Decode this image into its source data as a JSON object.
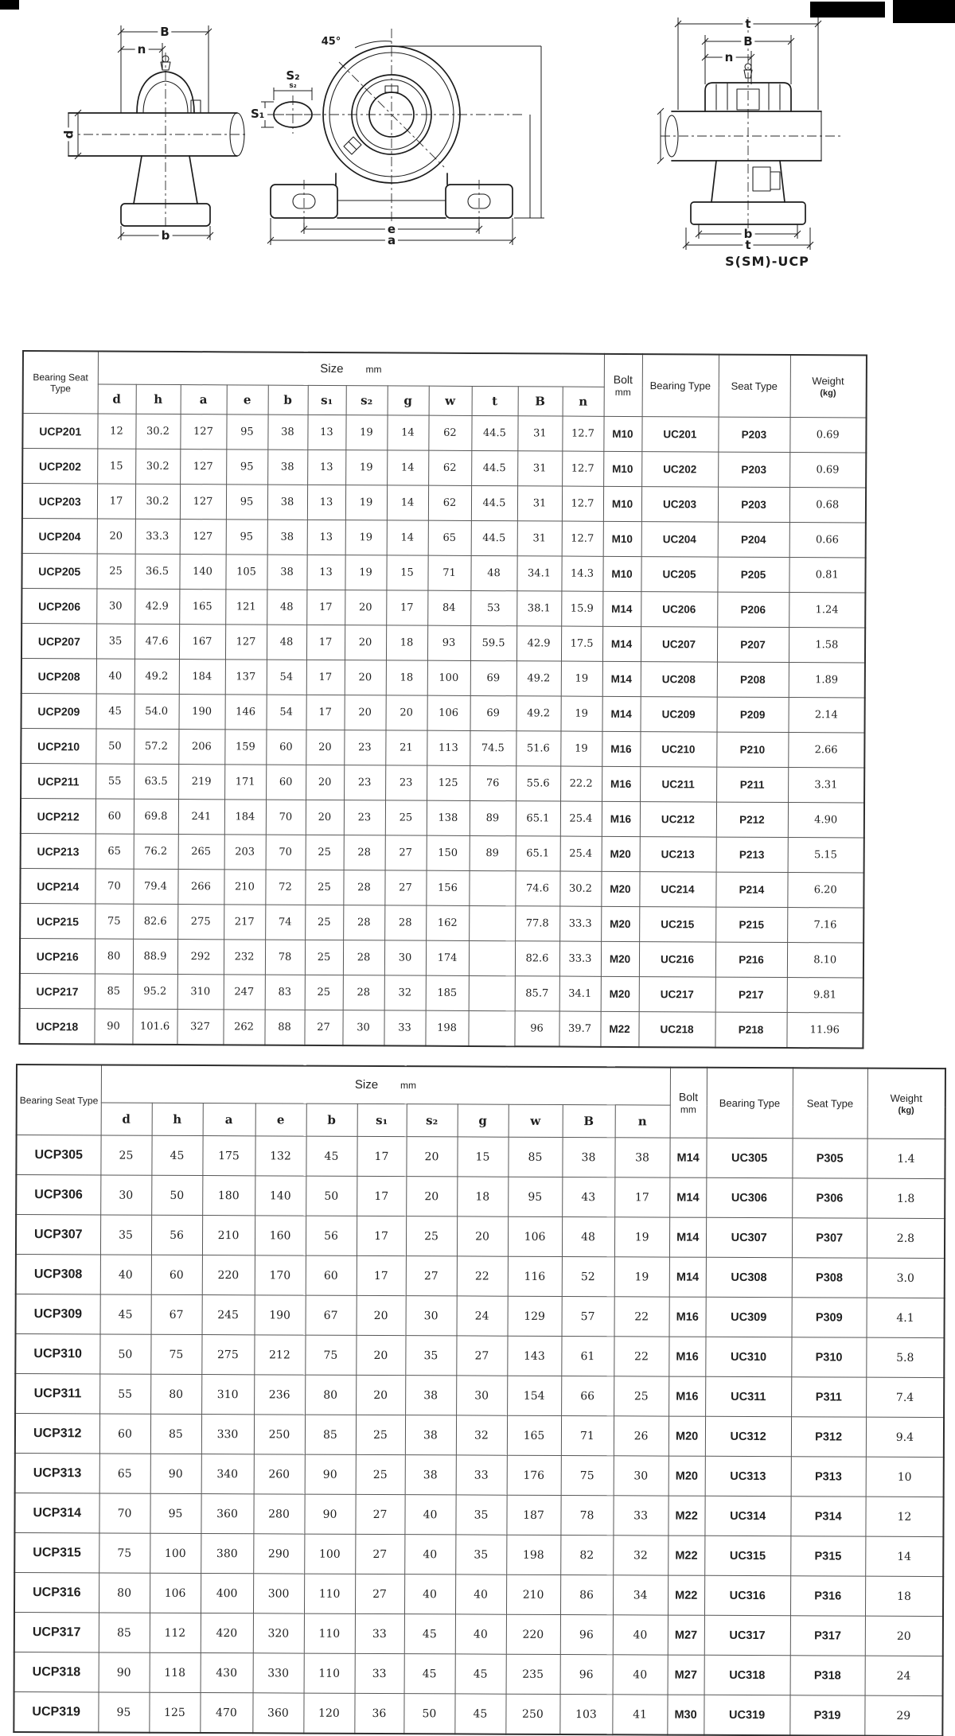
{
  "drawings": {
    "caption": "S(SM)-UCP",
    "side_view": {
      "dim_B": "B",
      "dim_n": "n",
      "dim_d": "d",
      "dim_b": "b"
    },
    "front_view": {
      "angle": "45°",
      "dim_s2": "S₂",
      "dim_s2_small": "s₂",
      "dim_s1": "S₁",
      "dim_e": "e",
      "dim_a": "a"
    },
    "end_view": {
      "dim_t_top": "t",
      "dim_B": "B",
      "dim_n": "n",
      "dim_b": "b",
      "dim_t_bottom": "t"
    }
  },
  "table1": {
    "header": {
      "bearing_seat_type": "Bearing Seat Type",
      "size_group": "Size",
      "size_unit": "mm",
      "size_cols": [
        "d",
        "h",
        "a",
        "e",
        "b",
        "s₁",
        "s₂",
        "g",
        "w",
        "t",
        "B",
        "n"
      ],
      "bolt_label": "Bolt",
      "bolt_unit": "mm",
      "bearing_type": "Bearing Type",
      "seat_type": "Seat Type",
      "weight_label": "Weight",
      "weight_unit": "(kg)"
    },
    "rows": [
      {
        "model": "UCP201",
        "size": [
          "12",
          "30.2",
          "127",
          "95",
          "38",
          "13",
          "19",
          "14",
          "62",
          "44.5",
          "31",
          "12.7"
        ],
        "bolt": "M10",
        "bearing": "UC201",
        "seat": "P203",
        "weight": "0.69"
      },
      {
        "model": "UCP202",
        "size": [
          "15",
          "30.2",
          "127",
          "95",
          "38",
          "13",
          "19",
          "14",
          "62",
          "44.5",
          "31",
          "12.7"
        ],
        "bolt": "M10",
        "bearing": "UC202",
        "seat": "P203",
        "weight": "0.69"
      },
      {
        "model": "UCP203",
        "size": [
          "17",
          "30.2",
          "127",
          "95",
          "38",
          "13",
          "19",
          "14",
          "62",
          "44.5",
          "31",
          "12.7"
        ],
        "bolt": "M10",
        "bearing": "UC203",
        "seat": "P203",
        "weight": "0.68"
      },
      {
        "model": "UCP204",
        "size": [
          "20",
          "33.3",
          "127",
          "95",
          "38",
          "13",
          "19",
          "14",
          "65",
          "44.5",
          "31",
          "12.7"
        ],
        "bolt": "M10",
        "bearing": "UC204",
        "seat": "P204",
        "weight": "0.66"
      },
      {
        "model": "UCP205",
        "size": [
          "25",
          "36.5",
          "140",
          "105",
          "38",
          "13",
          "19",
          "15",
          "71",
          "48",
          "34.1",
          "14.3"
        ],
        "bolt": "M10",
        "bearing": "UC205",
        "seat": "P205",
        "weight": "0.81"
      },
      {
        "model": "UCP206",
        "size": [
          "30",
          "42.9",
          "165",
          "121",
          "48",
          "17",
          "20",
          "17",
          "84",
          "53",
          "38.1",
          "15.9"
        ],
        "bolt": "M14",
        "bearing": "UC206",
        "seat": "P206",
        "weight": "1.24"
      },
      {
        "model": "UCP207",
        "size": [
          "35",
          "47.6",
          "167",
          "127",
          "48",
          "17",
          "20",
          "18",
          "93",
          "59.5",
          "42.9",
          "17.5"
        ],
        "bolt": "M14",
        "bearing": "UC207",
        "seat": "P207",
        "weight": "1.58"
      },
      {
        "model": "UCP208",
        "size": [
          "40",
          "49.2",
          "184",
          "137",
          "54",
          "17",
          "20",
          "18",
          "100",
          "69",
          "49.2",
          "19"
        ],
        "bolt": "M14",
        "bearing": "UC208",
        "seat": "P208",
        "weight": "1.89"
      },
      {
        "model": "UCP209",
        "size": [
          "45",
          "54.0",
          "190",
          "146",
          "54",
          "17",
          "20",
          "20",
          "106",
          "69",
          "49.2",
          "19"
        ],
        "bolt": "M14",
        "bearing": "UC209",
        "seat": "P209",
        "weight": "2.14"
      },
      {
        "model": "UCP210",
        "size": [
          "50",
          "57.2",
          "206",
          "159",
          "60",
          "20",
          "23",
          "21",
          "113",
          "74.5",
          "51.6",
          "19"
        ],
        "bolt": "M16",
        "bearing": "UC210",
        "seat": "P210",
        "weight": "2.66"
      },
      {
        "model": "UCP211",
        "size": [
          "55",
          "63.5",
          "219",
          "171",
          "60",
          "20",
          "23",
          "23",
          "125",
          "76",
          "55.6",
          "22.2"
        ],
        "bolt": "M16",
        "bearing": "UC211",
        "seat": "P211",
        "weight": "3.31"
      },
      {
        "model": "UCP212",
        "size": [
          "60",
          "69.8",
          "241",
          "184",
          "70",
          "20",
          "23",
          "25",
          "138",
          "89",
          "65.1",
          "25.4"
        ],
        "bolt": "M16",
        "bearing": "UC212",
        "seat": "P212",
        "weight": "4.90"
      },
      {
        "model": "UCP213",
        "size": [
          "65",
          "76.2",
          "265",
          "203",
          "70",
          "25",
          "28",
          "27",
          "150",
          "89",
          "65.1",
          "25.4"
        ],
        "bolt": "M20",
        "bearing": "UC213",
        "seat": "P213",
        "weight": "5.15"
      },
      {
        "model": "UCP214",
        "size": [
          "70",
          "79.4",
          "266",
          "210",
          "72",
          "25",
          "28",
          "27",
          "156",
          "",
          "74.6",
          "30.2"
        ],
        "bolt": "M20",
        "bearing": "UC214",
        "seat": "P214",
        "weight": "6.20"
      },
      {
        "model": "UCP215",
        "size": [
          "75",
          "82.6",
          "275",
          "217",
          "74",
          "25",
          "28",
          "28",
          "162",
          "",
          "77.8",
          "33.3"
        ],
        "bolt": "M20",
        "bearing": "UC215",
        "seat": "P215",
        "weight": "7.16"
      },
      {
        "model": "UCP216",
        "size": [
          "80",
          "88.9",
          "292",
          "232",
          "78",
          "25",
          "28",
          "30",
          "174",
          "",
          "82.6",
          "33.3"
        ],
        "bolt": "M20",
        "bearing": "UC216",
        "seat": "P216",
        "weight": "8.10"
      },
      {
        "model": "UCP217",
        "size": [
          "85",
          "95.2",
          "310",
          "247",
          "83",
          "25",
          "28",
          "32",
          "185",
          "",
          "85.7",
          "34.1"
        ],
        "bolt": "M20",
        "bearing": "UC217",
        "seat": "P217",
        "weight": "9.81"
      },
      {
        "model": "UCP218",
        "size": [
          "90",
          "101.6",
          "327",
          "262",
          "88",
          "27",
          "30",
          "33",
          "198",
          "",
          "96",
          "39.7"
        ],
        "bolt": "M22",
        "bearing": "UC218",
        "seat": "P218",
        "weight": "11.96"
      }
    ]
  },
  "table2": {
    "header": {
      "bearing_seat_type": "Bearing Seat Type",
      "size_group": "Size",
      "size_unit": "mm",
      "size_cols": [
        "d",
        "h",
        "a",
        "e",
        "b",
        "s₁",
        "s₂",
        "g",
        "w",
        "B",
        "n"
      ],
      "bolt_label": "Bolt",
      "bolt_unit": "mm",
      "bearing_type": "Bearing Type",
      "seat_type": "Seat Type",
      "weight_label": "Weight",
      "weight_unit": "(kg)"
    },
    "rows": [
      {
        "model": "UCP305",
        "size": [
          "25",
          "45",
          "175",
          "132",
          "45",
          "17",
          "20",
          "15",
          "85",
          "38",
          "38"
        ],
        "bolt": "M14",
        "bearing": "UC305",
        "seat": "P305",
        "weight": "1.4"
      },
      {
        "model": "UCP306",
        "size": [
          "30",
          "50",
          "180",
          "140",
          "50",
          "17",
          "20",
          "18",
          "95",
          "43",
          "17"
        ],
        "bolt": "M14",
        "bearing": "UC306",
        "seat": "P306",
        "weight": "1.8"
      },
      {
        "model": "UCP307",
        "size": [
          "35",
          "56",
          "210",
          "160",
          "56",
          "17",
          "25",
          "20",
          "106",
          "48",
          "19"
        ],
        "bolt": "M14",
        "bearing": "UC307",
        "seat": "P307",
        "weight": "2.8"
      },
      {
        "model": "UCP308",
        "size": [
          "40",
          "60",
          "220",
          "170",
          "60",
          "17",
          "27",
          "22",
          "116",
          "52",
          "19"
        ],
        "bolt": "M14",
        "bearing": "UC308",
        "seat": "P308",
        "weight": "3.0"
      },
      {
        "model": "UCP309",
        "size": [
          "45",
          "67",
          "245",
          "190",
          "67",
          "20",
          "30",
          "24",
          "129",
          "57",
          "22"
        ],
        "bolt": "M16",
        "bearing": "UC309",
        "seat": "P309",
        "weight": "4.1"
      },
      {
        "model": "UCP310",
        "size": [
          "50",
          "75",
          "275",
          "212",
          "75",
          "20",
          "35",
          "27",
          "143",
          "61",
          "22"
        ],
        "bolt": "M16",
        "bearing": "UC310",
        "seat": "P310",
        "weight": "5.8"
      },
      {
        "model": "UCP311",
        "size": [
          "55",
          "80",
          "310",
          "236",
          "80",
          "20",
          "38",
          "30",
          "154",
          "66",
          "25"
        ],
        "bolt": "M16",
        "bearing": "UC311",
        "seat": "P311",
        "weight": "7.4"
      },
      {
        "model": "UCP312",
        "size": [
          "60",
          "85",
          "330",
          "250",
          "85",
          "25",
          "38",
          "32",
          "165",
          "71",
          "26"
        ],
        "bolt": "M20",
        "bearing": "UC312",
        "seat": "P312",
        "weight": "9.4"
      },
      {
        "model": "UCP313",
        "size": [
          "65",
          "90",
          "340",
          "260",
          "90",
          "25",
          "38",
          "33",
          "176",
          "75",
          "30"
        ],
        "bolt": "M20",
        "bearing": "UC313",
        "seat": "P313",
        "weight": "10"
      },
      {
        "model": "UCP314",
        "size": [
          "70",
          "95",
          "360",
          "280",
          "90",
          "27",
          "40",
          "35",
          "187",
          "78",
          "33"
        ],
        "bolt": "M22",
        "bearing": "UC314",
        "seat": "P314",
        "weight": "12"
      },
      {
        "model": "UCP315",
        "size": [
          "75",
          "100",
          "380",
          "290",
          "100",
          "27",
          "40",
          "35",
          "198",
          "82",
          "32"
        ],
        "bolt": "M22",
        "bearing": "UC315",
        "seat": "P315",
        "weight": "14"
      },
      {
        "model": "UCP316",
        "size": [
          "80",
          "106",
          "400",
          "300",
          "110",
          "27",
          "40",
          "40",
          "210",
          "86",
          "34"
        ],
        "bolt": "M22",
        "bearing": "UC316",
        "seat": "P316",
        "weight": "18"
      },
      {
        "model": "UCP317",
        "size": [
          "85",
          "112",
          "420",
          "320",
          "110",
          "33",
          "45",
          "40",
          "220",
          "96",
          "40"
        ],
        "bolt": "M27",
        "bearing": "UC317",
        "seat": "P317",
        "weight": "20"
      },
      {
        "model": "UCP318",
        "size": [
          "90",
          "118",
          "430",
          "330",
          "110",
          "33",
          "45",
          "45",
          "235",
          "96",
          "40"
        ],
        "bolt": "M27",
        "bearing": "UC318",
        "seat": "P318",
        "weight": "24"
      },
      {
        "model": "UCP319",
        "size": [
          "95",
          "125",
          "470",
          "360",
          "120",
          "36",
          "50",
          "45",
          "250",
          "103",
          "41"
        ],
        "bolt": "M30",
        "bearing": "UC319",
        "seat": "P319",
        "weight": "29"
      }
    ]
  }
}
